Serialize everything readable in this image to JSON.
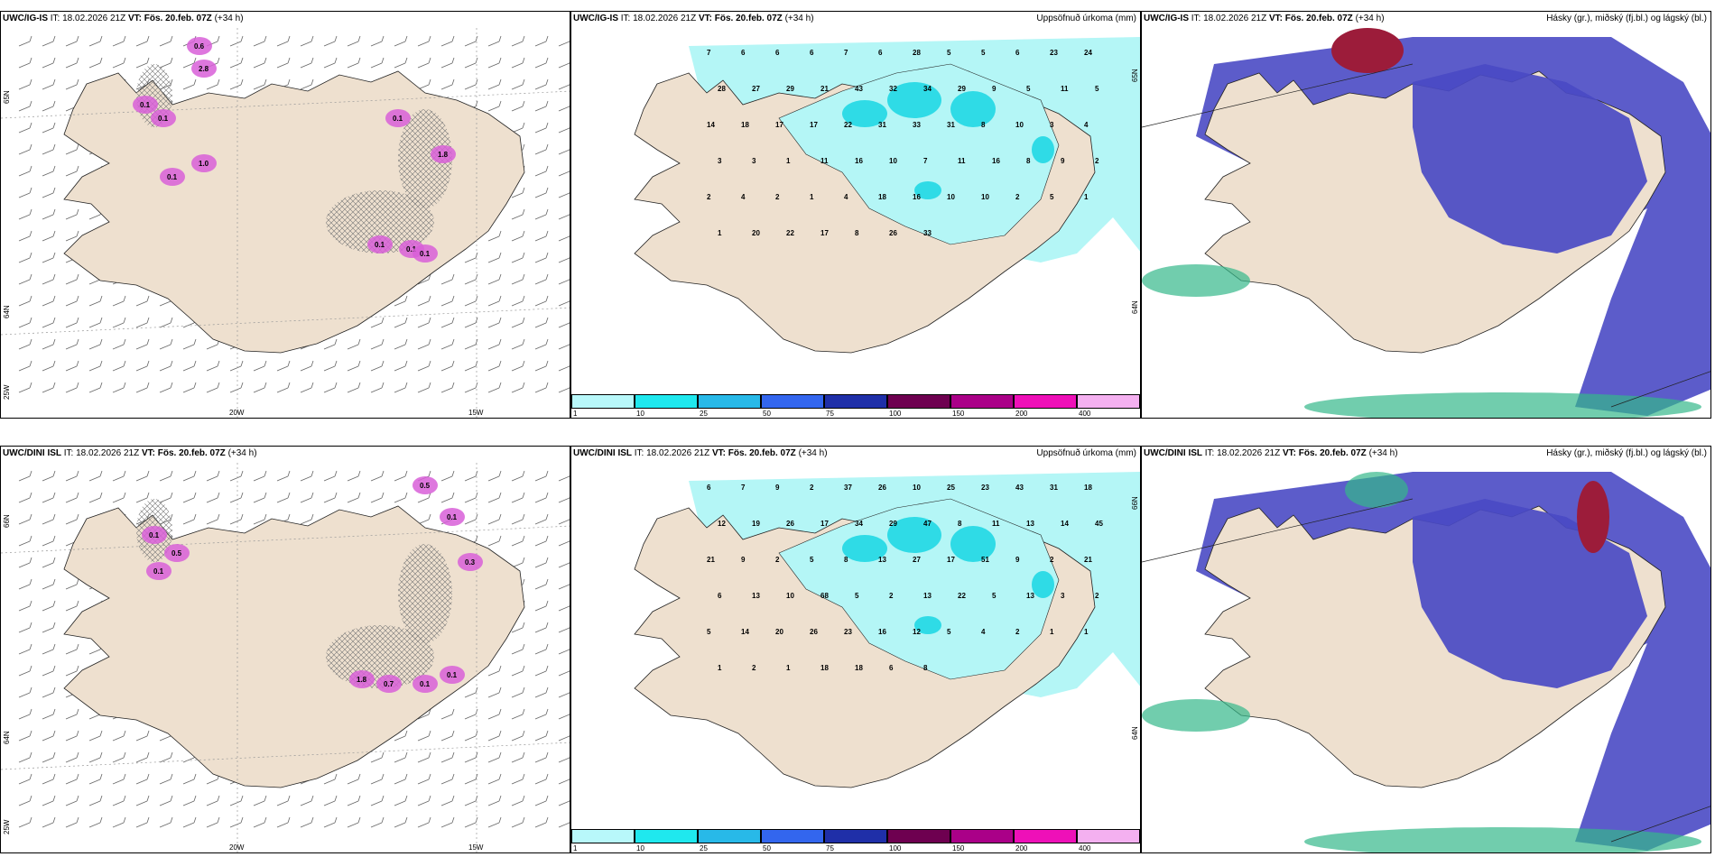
{
  "rows": [
    {
      "model": "UWC/IG-IS",
      "panels": [
        {
          "kind": "wind",
          "title_model": "UWC/IG-IS",
          "it": "IT: 18.02.2026 21Z",
          "vt_label": "VT:",
          "vt_value": "Fös. 20.feb. 07Z",
          "lead": "(+34 h)",
          "right": "",
          "lon_labels": [
            "20W",
            "15W"
          ],
          "lat_labels": [
            "65N",
            "64N",
            "25W"
          ],
          "values": [
            "0.6",
            "2.8",
            "0.1",
            "0.1",
            "1.0",
            "0.1",
            "0.1",
            "1.8",
            "0.1",
            "0.1",
            "0.1"
          ]
        },
        {
          "kind": "precip",
          "title_model": "UWC/IG-IS",
          "it": "IT: 18.02.2026 21Z",
          "vt_label": "VT:",
          "vt_value": "Fös. 20.feb. 07Z",
          "lead": "(+34 h)",
          "right": "Uppsöfnuð úrkoma (mm)",
          "lat_labels": [
            "65N",
            "64N"
          ],
          "values": [
            "7",
            "6",
            "6",
            "6",
            "7",
            "6",
            "28",
            "5",
            "5",
            "6",
            "23",
            "24",
            "28",
            "27",
            "29",
            "21",
            "43",
            "32",
            "34",
            "29",
            "9",
            "5",
            "11",
            "5",
            "14",
            "18",
            "17",
            "17",
            "22",
            "31",
            "33",
            "31",
            "8",
            "10",
            "3",
            "4",
            "3",
            "3",
            "1",
            "11",
            "16",
            "10",
            "7",
            "11",
            "16",
            "8",
            "9",
            "2",
            "2",
            "4",
            "2",
            "1",
            "4",
            "18",
            "16",
            "10",
            "10",
            "2",
            "5",
            "1",
            "1",
            "20",
            "22",
            "17",
            "8",
            "26",
            "33"
          ]
        },
        {
          "kind": "cloud",
          "title_model": "UWC/IG-IS",
          "it": "IT: 18.02.2026 21Z",
          "vt_label": "VT:",
          "vt_value": "Fös. 20.feb. 07Z",
          "lead": "(+34 h)",
          "right": "Hásky (gr.), miðský (fj.bl.) og lágský (bl.)"
        }
      ]
    },
    {
      "model": "UWC/DINI ISL",
      "panels": [
        {
          "kind": "wind",
          "title_model": "UWC/DINI ISL",
          "it": "IT: 18.02.2026 21Z",
          "vt_label": "VT:",
          "vt_value": "Fös. 20.feb. 07Z",
          "lead": "(+34 h)",
          "right": "",
          "lon_labels": [
            "20W",
            "15W"
          ],
          "lat_labels": [
            "66N",
            "64N",
            "25W"
          ],
          "values": [
            "0.5",
            "0.1",
            "0.1",
            "0.5",
            "0.1",
            "0.3",
            "1.8",
            "0.7",
            "0.1",
            "0.1"
          ]
        },
        {
          "kind": "precip",
          "title_model": "UWC/DINI ISL",
          "it": "IT: 18.02.2026 21Z",
          "vt_label": "VT:",
          "vt_value": "Fös. 20.feb. 07Z",
          "lead": "(+34 h)",
          "right": "Uppsöfnuð úrkoma (mm)",
          "lat_labels": [
            "66N",
            "64N"
          ],
          "values": [
            "6",
            "7",
            "9",
            "2",
            "37",
            "26",
            "10",
            "25",
            "23",
            "43",
            "31",
            "18",
            "12",
            "19",
            "26",
            "17",
            "34",
            "29",
            "47",
            "8",
            "11",
            "13",
            "14",
            "45",
            "21",
            "9",
            "2",
            "5",
            "8",
            "13",
            "27",
            "17",
            "51",
            "9",
            "2",
            "21",
            "6",
            "13",
            "10",
            "68",
            "5",
            "2",
            "13",
            "22",
            "5",
            "13",
            "3",
            "2",
            "5",
            "14",
            "20",
            "26",
            "23",
            "16",
            "12",
            "5",
            "4",
            "2",
            "1",
            "1",
            "1",
            "2",
            "1",
            "18",
            "18",
            "6",
            "8"
          ]
        },
        {
          "kind": "cloud",
          "title_model": "UWC/DINI ISL",
          "it": "IT: 18.02.2026 21Z",
          "vt_label": "VT:",
          "vt_value": "Fös. 20.feb. 07Z",
          "lead": "(+34 h)",
          "right": "Hásky (gr.), miðský (fj.bl.) og lágský (bl.)"
        }
      ]
    }
  ],
  "colorbar": {
    "ticks": [
      "1",
      "10",
      "25",
      "50",
      "75",
      "100",
      "150",
      "200",
      "400"
    ],
    "colors": [
      "#b8f8fa",
      "#1fe8ee",
      "#28b9e8",
      "#3366ee",
      "#1f2fa8",
      "#6e0050",
      "#aa0088",
      "#ee10b8",
      "#f4b0f0"
    ]
  },
  "colors": {
    "land": "#eee0cf",
    "precip_light": "#b4f6f6",
    "precip_mid": "#2fdbe6",
    "cloud_low": "#4a4ac4",
    "cloud_high": "#9c1c3a",
    "cloud_mid": "#34b88a",
    "snow_pink": "#d85fd8"
  }
}
